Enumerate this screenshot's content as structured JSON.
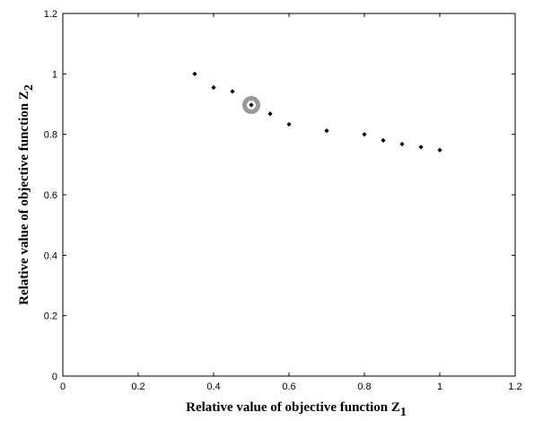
{
  "chart_data": {
    "type": "scatter",
    "xlabel": "Relative value of objective function Z",
    "xlabel_sub": "1",
    "ylabel": "Relative value of objective function Z",
    "ylabel_sub": "2",
    "xlim": [
      0,
      1.2
    ],
    "ylim": [
      0,
      1.2
    ],
    "xticks": [
      "0",
      "0.2",
      "0.4",
      "0.6",
      "0.8",
      "1",
      "1.2"
    ],
    "yticks": [
      "0",
      "0.2",
      "0.4",
      "0.6",
      "0.8",
      "1",
      "1.2"
    ],
    "grid": false,
    "points": [
      {
        "x": 0.35,
        "y": 1.0
      },
      {
        "x": 0.4,
        "y": 0.955
      },
      {
        "x": 0.45,
        "y": 0.942
      },
      {
        "x": 0.5,
        "y": 0.897
      },
      {
        "x": 0.55,
        "y": 0.868
      },
      {
        "x": 0.6,
        "y": 0.833
      },
      {
        "x": 0.7,
        "y": 0.812
      },
      {
        "x": 0.8,
        "y": 0.8
      },
      {
        "x": 0.85,
        "y": 0.78
      },
      {
        "x": 0.9,
        "y": 0.768
      },
      {
        "x": 0.95,
        "y": 0.758
      },
      {
        "x": 1.0,
        "y": 0.748
      }
    ],
    "highlight": {
      "x": 0.5,
      "y": 0.897
    },
    "colors": {
      "point": "#000000",
      "highlight": "#999999",
      "axes": "#000000"
    }
  }
}
